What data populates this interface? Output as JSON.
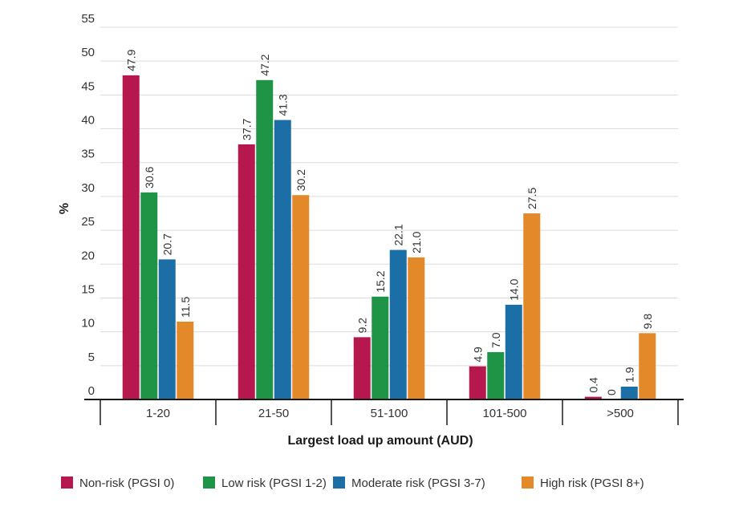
{
  "chart_data": {
    "type": "bar",
    "title": "",
    "xlabel": "Largest load up amount (AUD)",
    "ylabel": "%",
    "ylim": [
      0,
      55
    ],
    "yticks": [
      0,
      5,
      10,
      15,
      20,
      25,
      30,
      35,
      40,
      45,
      50,
      55
    ],
    "grid": true,
    "legend_position": "bottom",
    "categories": [
      "1-20",
      "21-50",
      "51-100",
      "101-500",
      ">500"
    ],
    "series": [
      {
        "name": "Non-risk (PGSI 0)",
        "color": "#b5174e",
        "values": [
          47.9,
          37.7,
          9.2,
          4.9,
          0.4
        ],
        "labels": [
          "47.9",
          "37.7",
          "9.2",
          "4.9",
          "0.4"
        ]
      },
      {
        "name": "Low risk (PGSI 1-2)",
        "color": "#1f9346",
        "values": [
          30.6,
          47.2,
          15.2,
          7.0,
          0
        ],
        "labels": [
          "30.6",
          "47.2",
          "15.2",
          "7.0",
          "0"
        ]
      },
      {
        "name": "Moderate risk (PGSI 3-7)",
        "color": "#1b6fa6",
        "values": [
          20.7,
          41.3,
          22.1,
          14.0,
          1.9
        ],
        "labels": [
          "20.7",
          "41.3",
          "22.1",
          "14.0",
          "1.9"
        ]
      },
      {
        "name": "High risk (PGSI 8+)",
        "color": "#e4892a",
        "values": [
          11.5,
          30.2,
          21.0,
          27.5,
          9.8
        ],
        "labels": [
          "11.5",
          "30.2",
          "21.0",
          "27.5",
          "9.8"
        ]
      }
    ]
  }
}
